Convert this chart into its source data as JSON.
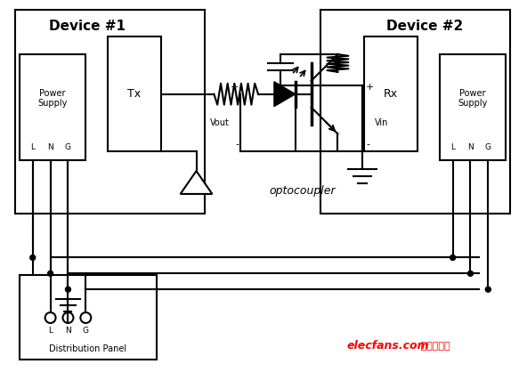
{
  "bg_color": "#ffffff",
  "device1_label": "Device #1",
  "device2_label": "Device #2",
  "watermark_red": "elecfans.com",
  "watermark_cn": " 电子发烧友",
  "lw": 1.5
}
